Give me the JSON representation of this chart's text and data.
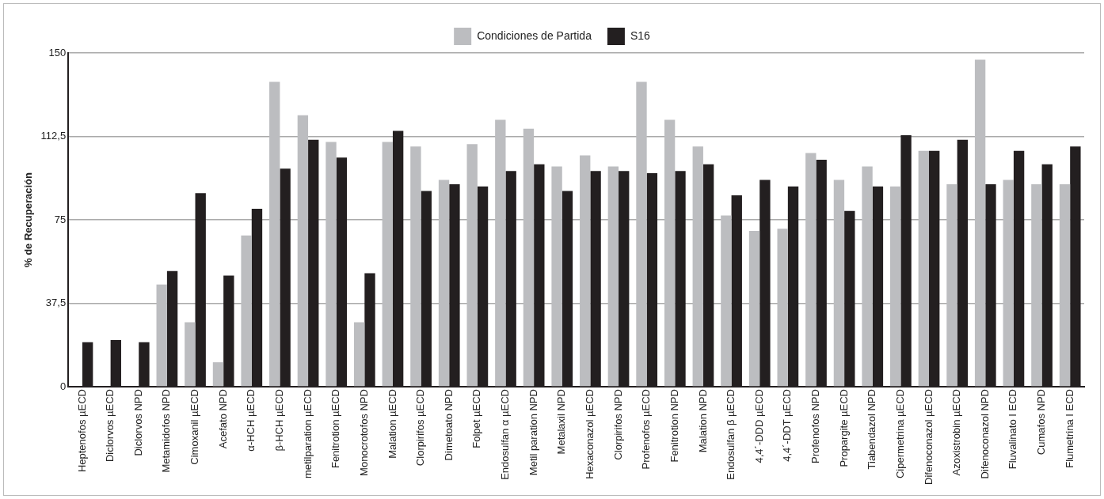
{
  "chart_data": {
    "type": "bar",
    "ylabel": "% de Recuperación",
    "categories": [
      "Heptenofos µECD",
      "Diclorvos µECD",
      "Diclorvos NPD",
      "Metamidofos NPD",
      "Cimoxanil µECD",
      "Acefato NPD",
      "α-HCH µECD",
      "β-HCH µECD",
      "metilparation µECD",
      "Fenitrotion µECD",
      "Monocrotofos NPD",
      "Malation µECD",
      "Clorpirifos µECD",
      "Dimetoato NPD",
      "Folpet µECD",
      "Endosulfan α µECD",
      "Metil paration NPD",
      "Metalaxil NPD",
      "Hexaconazol µECD",
      "Clorpirifos NPD",
      "Profenofos µECD",
      "Fenitrotion NPD",
      "Malation NPD",
      "Endosulfan β µECD",
      "4,4´-DDD µECD",
      "4,4´-DDT µECD",
      "Profenofos NPD",
      "Propargite µECD",
      "Tiabendazol NPD",
      "Cipermetrina µECD",
      "Difenoconazol µECD",
      "Azoxistrobin µECD",
      "Difenoconazol NPD",
      "Fluvalinato I ECD",
      "Cumafos NPD",
      "Flumetrina I ECD"
    ],
    "series": [
      {
        "name": "Condiciones de Partida",
        "color": "#bcbdc0",
        "values": [
          null,
          null,
          null,
          46,
          29,
          11,
          68,
          137,
          122,
          110,
          29,
          110,
          108,
          93,
          109,
          120,
          116,
          99,
          104,
          99,
          137,
          120,
          108,
          77,
          70,
          71,
          105,
          93,
          99,
          90,
          106,
          91,
          147,
          93,
          91,
          91
        ]
      },
      {
        "name": "S16",
        "color": "#231f20",
        "values": [
          20,
          21,
          20,
          52,
          87,
          50,
          80,
          98,
          111,
          103,
          51,
          115,
          88,
          91,
          90,
          97,
          100,
          88,
          97,
          97,
          96,
          97,
          100,
          86,
          93,
          90,
          102,
          79,
          90,
          113,
          106,
          111,
          91,
          106,
          100,
          108
        ]
      }
    ],
    "ylim": [
      0,
      150
    ],
    "yticks": [
      0,
      {
        "value": 37.5,
        "label": "37,5"
      },
      75,
      {
        "value": 112.5,
        "label": "112,5"
      },
      150
    ],
    "grid": "y",
    "legend": "top"
  }
}
